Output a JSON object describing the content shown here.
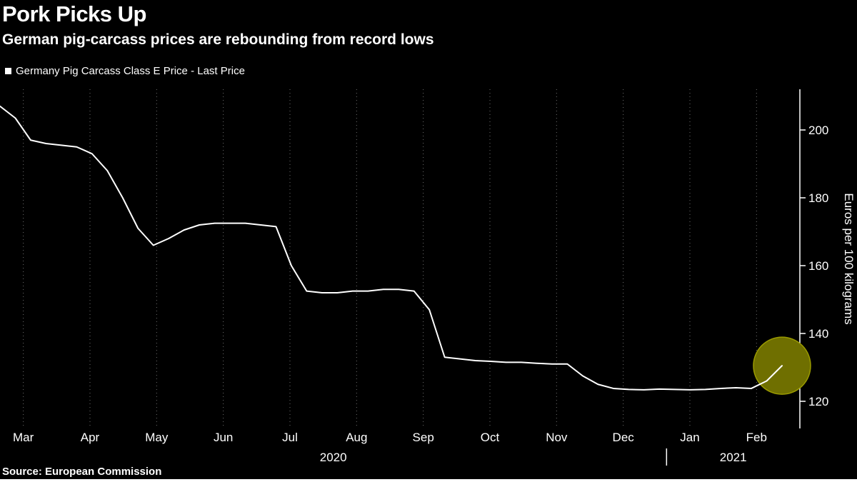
{
  "header": {
    "title": "Pork Picks Up",
    "subtitle": "German pig-carcass prices are rebounding from record lows"
  },
  "legend": {
    "label": "Germany Pig Carcass Class E Price - Last Price"
  },
  "footer": {
    "source": "Source: European Commission"
  },
  "colors": {
    "background": "#000000",
    "text": "#ffffff",
    "line": "#ffffff",
    "grid": "#707070",
    "highlight": "#6f6f00",
    "highlight_edge": "#9a9a00"
  },
  "chart_data": {
    "type": "line",
    "title": "Pork Picks Up",
    "subtitle": "German pig-carcass prices are rebounding from record lows",
    "ylabel": "Euros per 100 kilograms",
    "xlabel": "",
    "grid": "vertical-dotted",
    "legend_position": "top-left",
    "x_months": [
      "Mar",
      "Apr",
      "May",
      "Jun",
      "Jul",
      "Aug",
      "Sep",
      "Oct",
      "Nov",
      "Dec",
      "Jan",
      "Feb"
    ],
    "x_years": [
      {
        "label": "2020",
        "month_span": [
          0,
          9
        ]
      },
      {
        "label": "2021",
        "month_span": [
          10,
          11
        ]
      }
    ],
    "yticks": [
      120,
      140,
      160,
      180,
      200
    ],
    "ylim": [
      112,
      212
    ],
    "series": [
      {
        "name": "Germany Pig Carcass Class E Price - Last Price",
        "color": "#ffffff",
        "unit": "EUR/100kg",
        "frequency": "weekly",
        "values": [
          207,
          203.5,
          197,
          196,
          195.5,
          195,
          193,
          188,
          180,
          171,
          166,
          168,
          170.5,
          172,
          172.5,
          172.5,
          172.5,
          172,
          171.5,
          160,
          152.5,
          152,
          152,
          152.5,
          152.5,
          153,
          153,
          152.5,
          147,
          133,
          132.5,
          132,
          131.8,
          131.5,
          131.5,
          131.2,
          131,
          131,
          127.5,
          125,
          123.8,
          123.5,
          123.4,
          123.6,
          123.5,
          123.4,
          123.5,
          123.8,
          124,
          123.8,
          126,
          130.5
        ]
      }
    ],
    "highlight": {
      "type": "circle",
      "week_index": 51,
      "value": 130.5,
      "color": "#6f6f00"
    }
  }
}
